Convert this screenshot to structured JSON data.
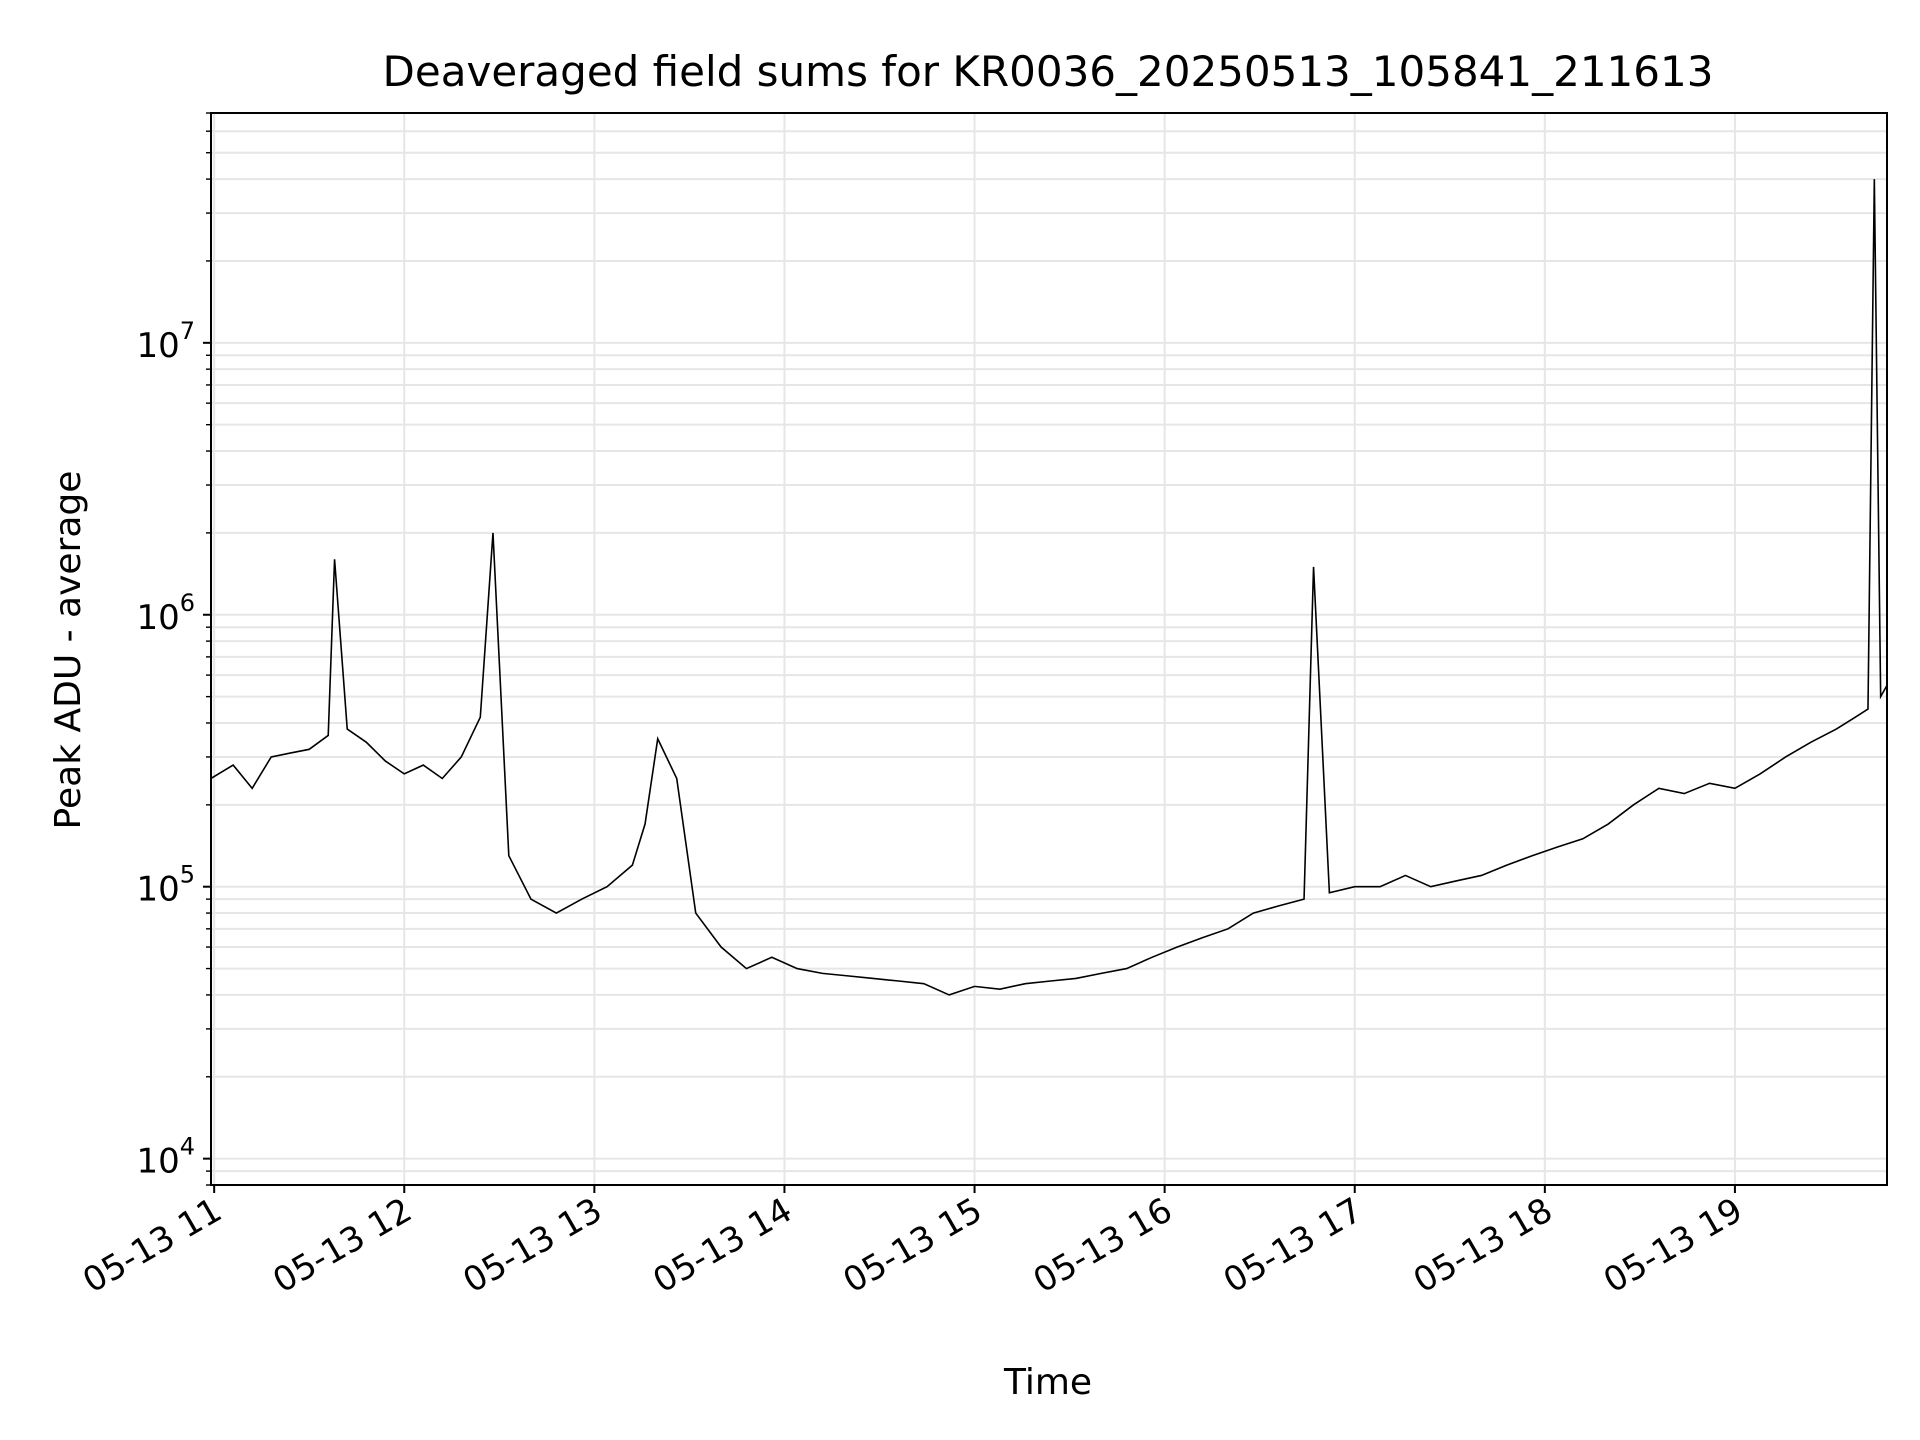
{
  "chart_data": {
    "type": "line",
    "title": "Deaveraged field sums for KR0036_20250513_105841_211613",
    "xlabel": "Time",
    "ylabel": "Peak ADU - average",
    "yscale": "log",
    "ylim": [
      8000,
      70000000
    ],
    "xlim": [
      "2025-05-13 10:59",
      "2025-05-13 19:48"
    ],
    "grid": true,
    "grid_minor": true,
    "line_color": "#000000",
    "grid_color": "#e6e6e6",
    "x_ticks": [
      "05-13 11",
      "05-13 12",
      "05-13 13",
      "05-13 14",
      "05-13 15",
      "05-13 16",
      "05-13 17",
      "05-13 18",
      "05-13 19"
    ],
    "y_ticks": [
      {
        "base": "10",
        "exp": "4"
      },
      {
        "base": "10",
        "exp": "5"
      },
      {
        "base": "10",
        "exp": "6"
      },
      {
        "base": "10",
        "exp": "7"
      }
    ],
    "series": [
      {
        "x": [
          "2025-05-13 10:59",
          "2025-05-13 11:06",
          "2025-05-13 11:12",
          "2025-05-13 11:18",
          "2025-05-13 11:24",
          "2025-05-13 11:30",
          "2025-05-13 11:36",
          "2025-05-13 11:38",
          "2025-05-13 11:42",
          "2025-05-13 11:48",
          "2025-05-13 11:54",
          "2025-05-13 12:00",
          "2025-05-13 12:06",
          "2025-05-13 12:12",
          "2025-05-13 12:18",
          "2025-05-13 12:24",
          "2025-05-13 12:28",
          "2025-05-13 12:33",
          "2025-05-13 12:40",
          "2025-05-13 12:48",
          "2025-05-13 12:56",
          "2025-05-13 13:04",
          "2025-05-13 13:12",
          "2025-05-13 13:16",
          "2025-05-13 13:20",
          "2025-05-13 13:26",
          "2025-05-13 13:32",
          "2025-05-13 13:40",
          "2025-05-13 13:48",
          "2025-05-13 13:56",
          "2025-05-13 14:04",
          "2025-05-13 14:12",
          "2025-05-13 14:20",
          "2025-05-13 14:28",
          "2025-05-13 14:36",
          "2025-05-13 14:44",
          "2025-05-13 14:52",
          "2025-05-13 15:00",
          "2025-05-13 15:08",
          "2025-05-13 15:16",
          "2025-05-13 15:24",
          "2025-05-13 15:32",
          "2025-05-13 15:40",
          "2025-05-13 15:48",
          "2025-05-13 15:56",
          "2025-05-13 16:04",
          "2025-05-13 16:12",
          "2025-05-13 16:20",
          "2025-05-13 16:28",
          "2025-05-13 16:36",
          "2025-05-13 16:44",
          "2025-05-13 16:47",
          "2025-05-13 16:52",
          "2025-05-13 17:00",
          "2025-05-13 17:08",
          "2025-05-13 17:16",
          "2025-05-13 17:24",
          "2025-05-13 17:32",
          "2025-05-13 17:40",
          "2025-05-13 17:48",
          "2025-05-13 17:56",
          "2025-05-13 18:04",
          "2025-05-13 18:12",
          "2025-05-13 18:20",
          "2025-05-13 18:28",
          "2025-05-13 18:36",
          "2025-05-13 18:44",
          "2025-05-13 18:52",
          "2025-05-13 19:00",
          "2025-05-13 19:08",
          "2025-05-13 19:16",
          "2025-05-13 19:24",
          "2025-05-13 19:32",
          "2025-05-13 19:38",
          "2025-05-13 19:42",
          "2025-05-13 19:44",
          "2025-05-13 19:46",
          "2025-05-13 19:48"
        ],
        "y": [
          250000,
          280000,
          230000,
          300000,
          310000,
          320000,
          360000,
          1600000,
          380000,
          340000,
          290000,
          260000,
          280000,
          250000,
          300000,
          420000,
          2000000,
          130000,
          90000,
          80000,
          90000,
          100000,
          120000,
          170000,
          350000,
          250000,
          80000,
          60000,
          50000,
          55000,
          50000,
          48000,
          47000,
          46000,
          45000,
          44000,
          40000,
          43000,
          42000,
          44000,
          45000,
          46000,
          48000,
          50000,
          55000,
          60000,
          65000,
          70000,
          80000,
          85000,
          90000,
          1500000,
          95000,
          100000,
          100000,
          110000,
          100000,
          105000,
          110000,
          120000,
          130000,
          140000,
          150000,
          170000,
          200000,
          230000,
          220000,
          240000,
          230000,
          260000,
          300000,
          340000,
          380000,
          420000,
          450000,
          40000000,
          500000,
          550000
        ]
      }
    ]
  }
}
